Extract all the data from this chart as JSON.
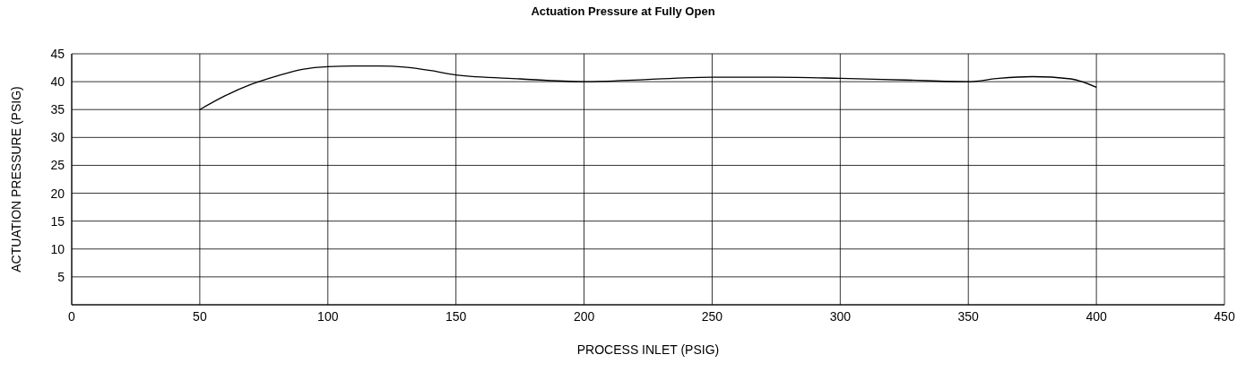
{
  "chart_data": {
    "type": "line",
    "title": "Actuation Pressure at Fully Open",
    "xlabel": "PROCESS INLET (PSIG)",
    "ylabel": "ACTUATION PRESSURE (PSIG)",
    "x": [
      50,
      60,
      70,
      80,
      90,
      100,
      110,
      120,
      130,
      140,
      150,
      175,
      200,
      225,
      250,
      275,
      300,
      325,
      350,
      362,
      375,
      390,
      400
    ],
    "series": [
      {
        "color": "#000000",
        "values": [
          35,
          37.5,
          39.5,
          41,
          42.2,
          42.7,
          42.8,
          42.8,
          42.6,
          42,
          41.2,
          40.5,
          40,
          40.4,
          40.8,
          40.8,
          40.6,
          40.3,
          40,
          40.6,
          40.9,
          40.5,
          39
        ]
      }
    ],
    "xlim": [
      0,
      450
    ],
    "xticks": [
      0,
      50,
      100,
      150,
      200,
      250,
      300,
      350,
      400,
      450
    ],
    "ylim": [
      0,
      45
    ],
    "yticks": [
      {
        "value": 0,
        "label": null
      },
      5,
      10,
      15,
      20,
      25,
      30,
      35,
      40,
      45
    ],
    "grid": true,
    "marker": "none",
    "line_style": "solid"
  }
}
